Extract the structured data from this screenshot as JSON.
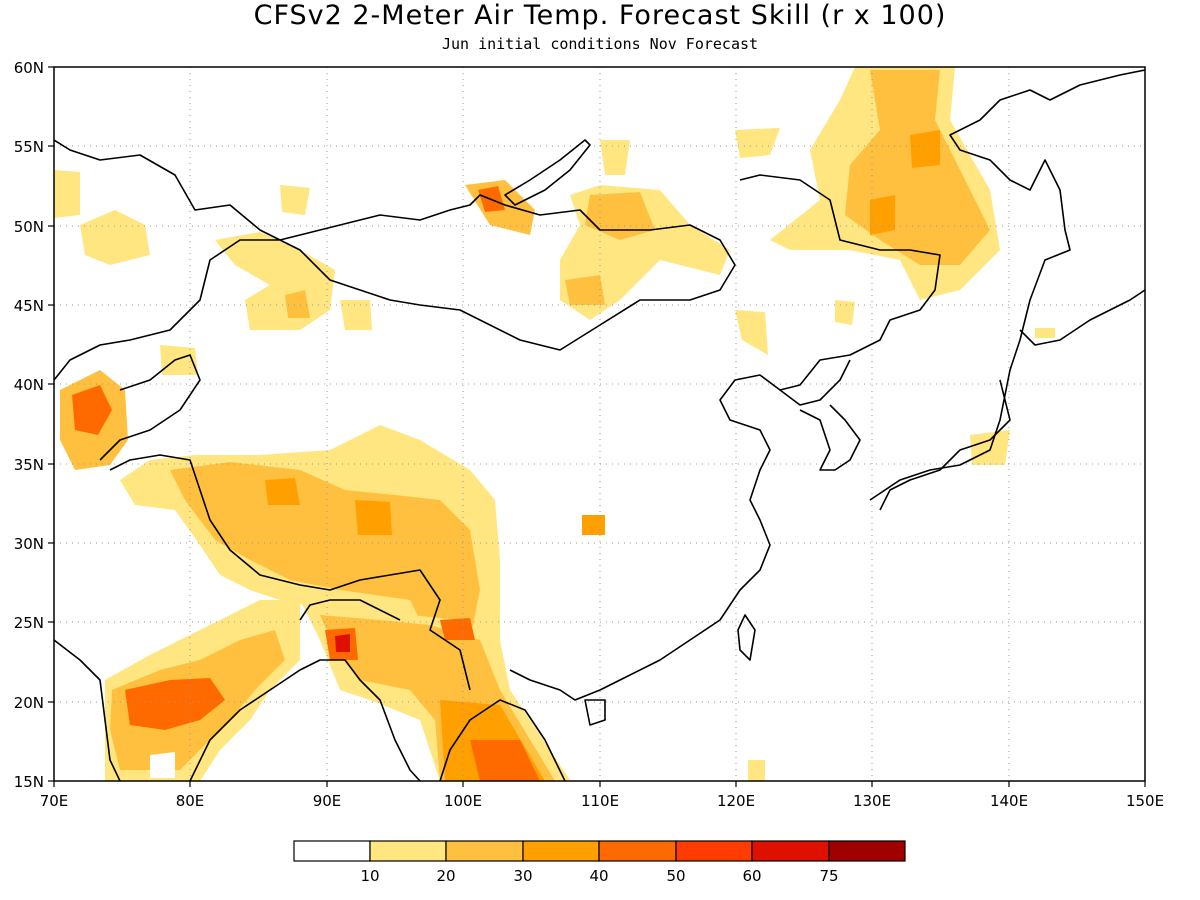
{
  "title": "CFSv2 2-Meter Air Temp. Forecast Skill (r x 100)",
  "subtitle": "Jun initial conditions  Nov Forecast",
  "map": {
    "lon_range": [
      70,
      150
    ],
    "lat_range": [
      15,
      60
    ],
    "lon_ticks": [
      "70E",
      "80E",
      "90E",
      "100E",
      "110E",
      "120E",
      "130E",
      "140E",
      "150E"
    ],
    "lat_ticks": [
      "15N",
      "20N",
      "25N",
      "30N",
      "35N",
      "40N",
      "45N",
      "50N",
      "55N",
      "60N"
    ],
    "grid": "dotted"
  },
  "colorbar": {
    "colors": [
      "#ffffff",
      "#ffe680",
      "#ffc040",
      "#ffa000",
      "#ff6a00",
      "#ff3c00",
      "#e01000",
      "#a00000"
    ],
    "labels": [
      "10",
      "20",
      "30",
      "40",
      "50",
      "60",
      "75"
    ]
  },
  "icons": {
    "coastline": "coastline-outline",
    "borders": "country-border-lines"
  }
}
